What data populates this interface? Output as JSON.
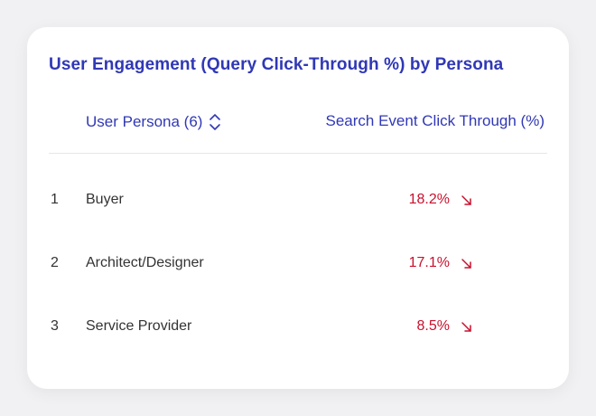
{
  "card": {
    "title": "User Engagement (Query Click-Through %) by Persona"
  },
  "table": {
    "columns": {
      "persona": "User Persona (6)",
      "ctr": "Search Event Click Through (%)"
    },
    "sort_icon": "sort-updown-icon",
    "trend_icon": "arrow-down-right-icon",
    "rows": [
      {
        "index": "1",
        "persona": "Buyer",
        "value": "18.2%",
        "trend": "down"
      },
      {
        "index": "2",
        "persona": "Architect/Designer",
        "value": "17.1%",
        "trend": "down"
      },
      {
        "index": "3",
        "persona": "Service Provider",
        "value": "8.5%",
        "trend": "down"
      }
    ]
  },
  "colors": {
    "accent": "#3038b6",
    "negative": "#c8102e",
    "text": "#333333",
    "card_background": "#ffffff",
    "page_background": "#f1f1f3"
  }
}
